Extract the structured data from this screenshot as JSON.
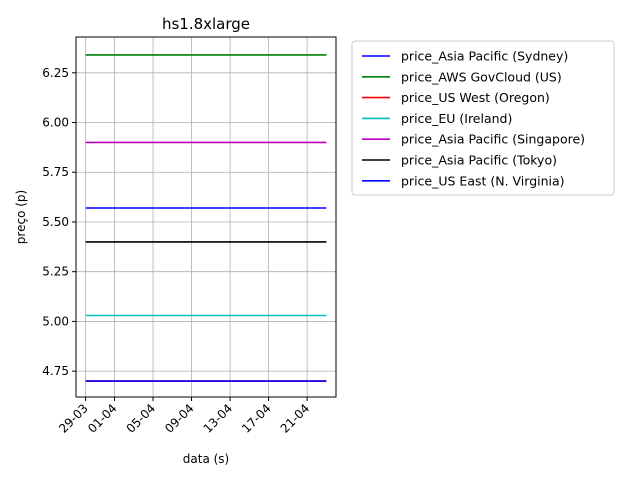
{
  "chart_data": {
    "type": "line",
    "title": "hs1.8xlarge",
    "xlabel": "data (s)",
    "ylabel": "preço (p)",
    "x_range": [
      "2017-03-28",
      "2017-04-24"
    ],
    "x_ticks": [
      {
        "date": "2017-03-29",
        "label": "29-03"
      },
      {
        "date": "2017-04-01",
        "label": "01-04"
      },
      {
        "date": "2017-04-05",
        "label": "05-04"
      },
      {
        "date": "2017-04-09",
        "label": "09-04"
      },
      {
        "date": "2017-04-13",
        "label": "13-04"
      },
      {
        "date": "2017-04-17",
        "label": "17-04"
      },
      {
        "date": "2017-04-21",
        "label": "21-04"
      }
    ],
    "ylim": [
      4.62,
      6.43
    ],
    "y_ticks": [
      4.75,
      5.0,
      5.25,
      5.5,
      5.75,
      6.0,
      6.25
    ],
    "y_tick_labels": [
      "4.75",
      "5.00",
      "5.25",
      "5.50",
      "5.75",
      "6.00",
      "6.25"
    ],
    "grid": true,
    "legend_position": "outside-right",
    "series": [
      {
        "name": "price_Asia Pacific (Sydney)",
        "color": "#0000ff",
        "x": [
          "2017-03-29",
          "2017-04-23"
        ],
        "y": [
          5.57,
          5.57
        ]
      },
      {
        "name": "price_AWS GovCloud (US)",
        "color": "#008000",
        "x": [
          "2017-03-29",
          "2017-04-23"
        ],
        "y": [
          6.34,
          6.34
        ]
      },
      {
        "name": "price_US West (Oregon)",
        "color": "#ff0000",
        "x": [
          "2017-03-29",
          "2017-04-23"
        ],
        "y": [
          4.7,
          4.7
        ]
      },
      {
        "name": "price_EU (Ireland)",
        "color": "#00bfbf",
        "x": [
          "2017-03-29",
          "2017-04-23"
        ],
        "y": [
          5.03,
          5.03
        ]
      },
      {
        "name": "price_Asia Pacific (Singapore)",
        "color": "#bf00bf",
        "x": [
          "2017-03-29",
          "2017-04-23"
        ],
        "y": [
          5.9,
          5.9
        ]
      },
      {
        "name": "price_Asia Pacific (Tokyo)",
        "color": "#000000",
        "x": [
          "2017-03-29",
          "2017-04-23"
        ],
        "y": [
          5.4,
          5.4
        ]
      },
      {
        "name": "price_US East (N. Virginia)",
        "color": "#0000ff",
        "x": [
          "2017-03-29",
          "2017-04-23"
        ],
        "y": [
          4.7,
          4.7
        ]
      }
    ]
  }
}
